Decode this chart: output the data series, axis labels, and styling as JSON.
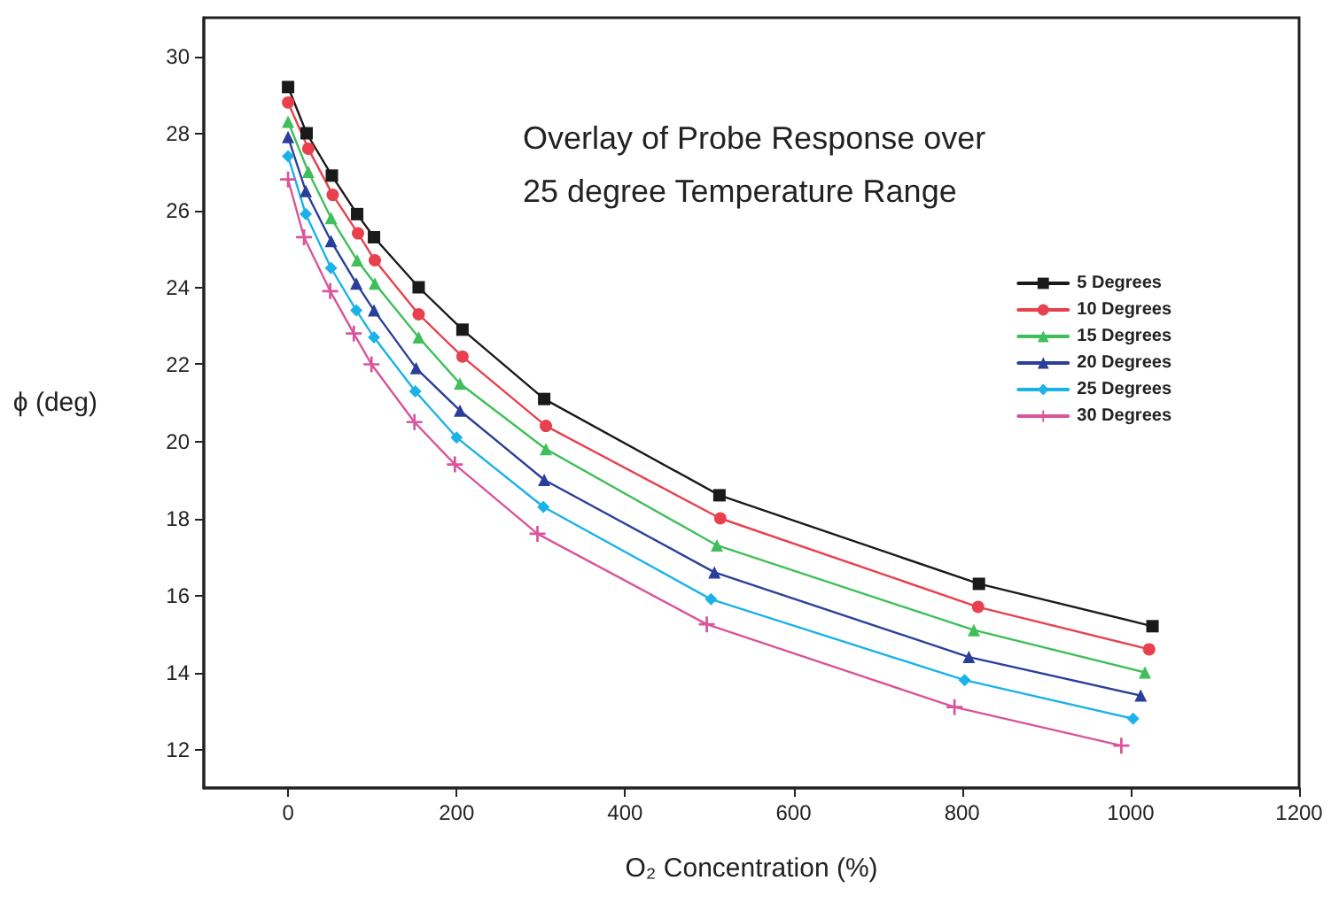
{
  "chart_data": {
    "type": "line",
    "title": "Overlay of Probe Response over\n25 degree Temperature Range",
    "xlabel": "O₂ Concentration (%)",
    "ylabel": "ϕ (deg)",
    "xlim": [
      -100,
      1200
    ],
    "xticks": [
      0,
      200,
      400,
      600,
      800,
      1000,
      1200
    ],
    "ylim": [
      11,
      31
    ],
    "yticks": [
      12,
      14,
      16,
      18,
      20,
      22,
      24,
      26,
      28,
      30
    ],
    "grid": false,
    "legend": "right",
    "line_style": "solid",
    "series": [
      {
        "name": "5 Degrees",
        "color": "#1a1a1a",
        "marker": "square",
        "x": [
          0,
          22,
          52,
          82,
          102,
          155,
          207,
          304,
          512,
          820,
          1026
        ],
        "values": [
          29.2,
          28.0,
          26.9,
          25.9,
          25.3,
          24.0,
          22.9,
          21.1,
          18.6,
          16.3,
          15.2
        ]
      },
      {
        "name": "10 Degrees",
        "color": "#e8414e",
        "marker": "circle",
        "x": [
          0,
          24,
          53,
          83,
          103,
          155,
          207,
          306,
          513,
          819,
          1022
        ],
        "values": [
          28.8,
          27.6,
          26.4,
          25.4,
          24.7,
          23.3,
          22.2,
          20.4,
          18.0,
          15.7,
          14.6
        ]
      },
      {
        "name": "15 Degrees",
        "color": "#3fbf5a",
        "marker": "triangle",
        "x": [
          0,
          24,
          51,
          82,
          103,
          155,
          204,
          306,
          509,
          814,
          1017
        ],
        "values": [
          28.3,
          27.0,
          25.8,
          24.7,
          24.1,
          22.7,
          21.5,
          19.8,
          17.3,
          15.1,
          14.0
        ]
      },
      {
        "name": "20 Degrees",
        "color": "#2a3f9a",
        "marker": "triangle",
        "x": [
          0,
          21,
          51,
          81,
          102,
          152,
          204,
          304,
          506,
          808,
          1012
        ],
        "values": [
          27.9,
          26.5,
          25.2,
          24.1,
          23.4,
          21.9,
          20.8,
          19.0,
          16.6,
          14.4,
          13.4
        ]
      },
      {
        "name": "25 Degrees",
        "color": "#1ab2e8",
        "marker": "diamond",
        "x": [
          0,
          21,
          51,
          81,
          102,
          151,
          200,
          303,
          502,
          803,
          1003
        ],
        "values": [
          27.4,
          25.9,
          24.5,
          23.4,
          22.7,
          21.3,
          20.1,
          18.3,
          15.9,
          13.8,
          12.8
        ]
      },
      {
        "name": "30 Degrees",
        "color": "#d9549a",
        "marker": "cross",
        "x": [
          0,
          19,
          50,
          78,
          99,
          150,
          198,
          296,
          497,
          791,
          989
        ],
        "values": [
          26.8,
          25.3,
          23.9,
          22.8,
          22.0,
          20.5,
          19.4,
          17.6,
          15.25,
          13.1,
          12.1
        ]
      }
    ]
  }
}
